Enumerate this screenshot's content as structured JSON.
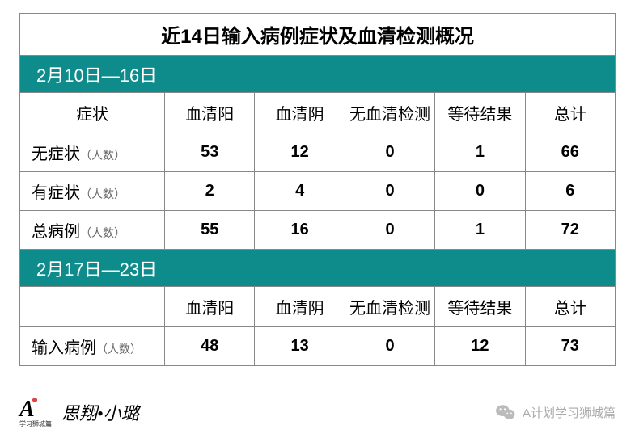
{
  "title": "近14日输入病例症状及血清检测概况",
  "period1": {
    "label": "2月10日—16日",
    "headers": [
      "症状",
      "血清阳",
      "血清阴",
      "无血清检测",
      "等待结果",
      "总计"
    ],
    "rows": [
      {
        "label": "无症状",
        "sub": "（人数）",
        "values": [
          "53",
          "12",
          "0",
          "1",
          "66"
        ],
        "redCols": [
          1
        ]
      },
      {
        "label": "有症状",
        "sub": "（人数）",
        "values": [
          "2",
          "4",
          "0",
          "0",
          "6"
        ],
        "redCols": [
          0,
          1
        ]
      },
      {
        "label": "总病例",
        "sub": "（人数）",
        "values": [
          "55",
          "16",
          "0",
          "1",
          "72"
        ],
        "redCols": [
          1
        ]
      }
    ]
  },
  "period2": {
    "label": "2月17日—23日",
    "headers": [
      "",
      "血清阳",
      "血清阴",
      "无血清检测",
      "等待结果",
      "总计"
    ],
    "rows": [
      {
        "label": "输入病例",
        "sub": "（人数）",
        "values": [
          "48",
          "13",
          "0",
          "12",
          "73"
        ],
        "redCols": [
          1
        ]
      }
    ]
  },
  "footer": {
    "logoLetter": "A",
    "logoSub": "学习狮城篇",
    "brand": "思翔•小璐",
    "source": "A计划学习狮城篇"
  },
  "colors": {
    "periodBg": "#0e8b8b",
    "red": "#cc0000",
    "border": "#888"
  }
}
